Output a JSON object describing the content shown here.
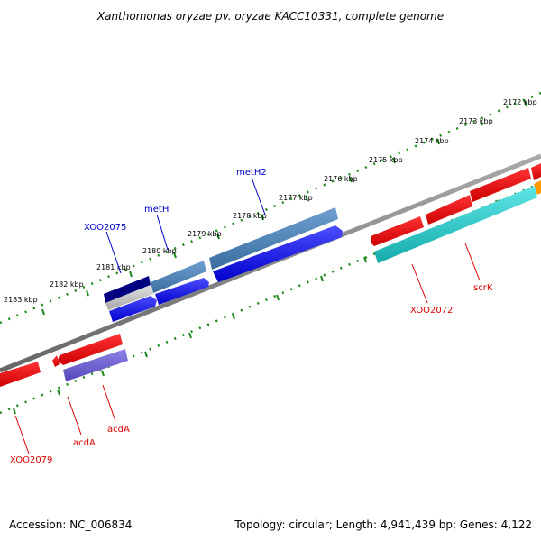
{
  "title": "Xanthomonas oryzae pv. oryzae KACC10331, complete genome",
  "footer": {
    "accession": "Accession: NC_006834",
    "topology": "Topology: circular; Length: 4,941,439 bp; Genes: 4,122"
  },
  "scale_ticks": [
    "2172 kbp",
    "2173 kbp",
    "2174 kbp",
    "2175 kbp",
    "2176 kbp",
    "2177 kbp",
    "2178 kbp",
    "2179 kbp",
    "2180 kbp",
    "2181 kbp",
    "2182 kbp",
    "2183 kbp"
  ],
  "gene_labels": {
    "metH2": "metH2",
    "metH": "metH",
    "XOO2075": "XOO2075",
    "XOO2072": "XOO2072",
    "scrK": "scrK",
    "acdA_1": "acdA",
    "acdA_2": "acdA",
    "XOO2079": "XOO2079"
  },
  "colors": {
    "forward_strand": "#0000ee",
    "reverse_strand": "#dd0000",
    "backbone": "#808080",
    "scale": "#1a8a1a",
    "steelblue_feature": "#4a7fb5",
    "navy_feature": "#000080",
    "cyan_feature": "#1ec8c8",
    "purple_feature": "#6a5acd",
    "orange_feature": "#ff9900"
  }
}
